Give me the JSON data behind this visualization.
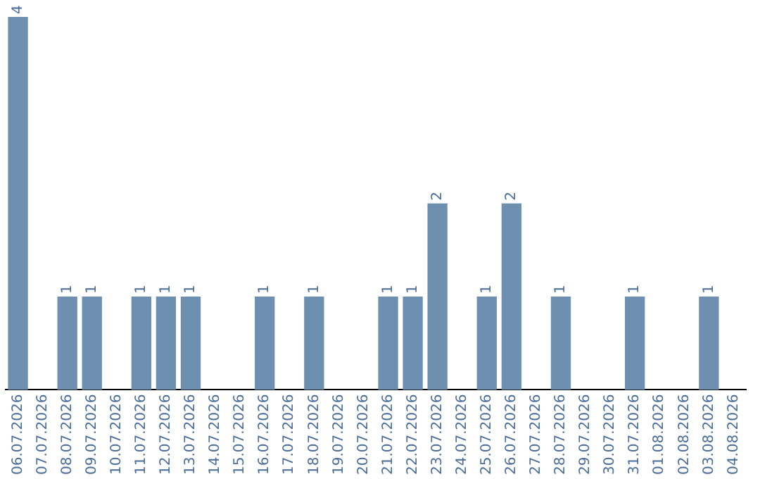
{
  "chart_data": {
    "type": "bar",
    "categories": [
      "06.07.2026",
      "07.07.2026",
      "08.07.2026",
      "09.07.2026",
      "10.07.2026",
      "11.07.2026",
      "12.07.2026",
      "13.07.2026",
      "14.07.2026",
      "15.07.2026",
      "16.07.2026",
      "17.07.2026",
      "18.07.2026",
      "19.07.2026",
      "20.07.2026",
      "21.07.2026",
      "22.07.2026",
      "23.07.2026",
      "24.07.2026",
      "25.07.2026",
      "26.07.2026",
      "27.07.2026",
      "28.07.2026",
      "29.07.2026",
      "30.07.2026",
      "31.07.2026",
      "01.08.2026",
      "02.08.2026",
      "03.08.2026",
      "04.08.2026"
    ],
    "values": [
      4,
      0,
      1,
      1,
      0,
      1,
      1,
      1,
      0,
      0,
      1,
      0,
      1,
      0,
      0,
      1,
      1,
      2,
      0,
      1,
      2,
      0,
      1,
      0,
      0,
      1,
      0,
      0,
      1,
      0
    ],
    "value_labels": [
      "4",
      null,
      "1",
      "1",
      null,
      "1",
      "1",
      "1",
      null,
      null,
      "1",
      null,
      "1",
      null,
      null,
      "1",
      "1",
      "2",
      null,
      "1",
      "2",
      null,
      "1",
      null,
      null,
      "1",
      null,
      null,
      "1",
      null
    ],
    "color": "#6d8fb0",
    "grid": false,
    "legend": false
  }
}
